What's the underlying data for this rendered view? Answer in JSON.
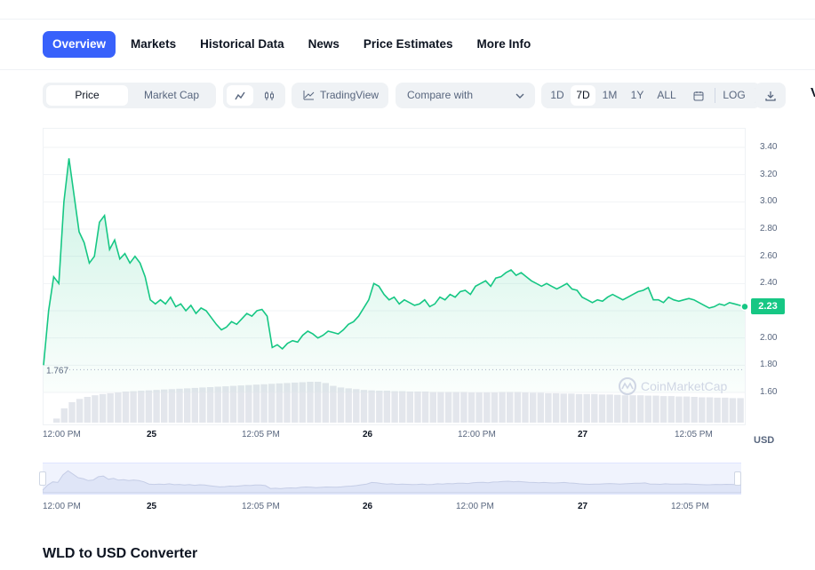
{
  "tabs": [
    {
      "label": "Overview",
      "active": true
    },
    {
      "label": "Markets"
    },
    {
      "label": "Historical Data"
    },
    {
      "label": "News"
    },
    {
      "label": "Price Estimates"
    },
    {
      "label": "More Info"
    }
  ],
  "toolbar": {
    "price_label": "Price",
    "market_cap_label": "Market Cap",
    "tradingview_label": "TradingView",
    "compare_label": "Compare with",
    "ranges": [
      "1D",
      "7D",
      "1M",
      "1Y",
      "ALL"
    ],
    "active_range": "7D",
    "log_label": "LOG",
    "icons": [
      "line-chart-icon",
      "candlestick-icon",
      "tradingview-icon",
      "chevron-down-icon",
      "calendar-icon",
      "download-icon"
    ]
  },
  "chart_data": {
    "type": "area",
    "y_ticks": [
      "3.40",
      "3.20",
      "3.00",
      "2.80",
      "2.60",
      "2.40",
      "2.20",
      "2.00",
      "1.80",
      "1.60"
    ],
    "ylim": [
      1.45,
      3.55
    ],
    "x_ticks": [
      "12:00 PM",
      "25",
      "12:05 PM",
      "26",
      "12:00 PM",
      "27",
      "12:05 PM"
    ],
    "x_day_ticks": [
      "25",
      "26",
      "27"
    ],
    "current_price": "2.23",
    "open_price_label": "1.767",
    "open_price": 1.767,
    "currency": "USD",
    "watermark": "CoinMarketCap",
    "line_color": "#16c784",
    "price_series": [
      1.8,
      2.2,
      2.45,
      2.4,
      3.0,
      3.32,
      3.05,
      2.78,
      2.7,
      2.55,
      2.6,
      2.85,
      2.9,
      2.65,
      2.72,
      2.58,
      2.62,
      2.55,
      2.6,
      2.55,
      2.45,
      2.28,
      2.25,
      2.28,
      2.25,
      2.3,
      2.23,
      2.25,
      2.2,
      2.24,
      2.18,
      2.22,
      2.2,
      2.15,
      2.1,
      2.06,
      2.08,
      2.12,
      2.1,
      2.14,
      2.18,
      2.16,
      2.2,
      2.21,
      2.16,
      1.93,
      1.95,
      1.92,
      1.96,
      1.98,
      1.97,
      2.02,
      2.05,
      2.03,
      2.0,
      2.02,
      2.05,
      2.04,
      2.03,
      2.06,
      2.1,
      2.12,
      2.16,
      2.22,
      2.28,
      2.4,
      2.38,
      2.32,
      2.28,
      2.3,
      2.25,
      2.28,
      2.26,
      2.24,
      2.25,
      2.28,
      2.23,
      2.25,
      2.3,
      2.28,
      2.32,
      2.3,
      2.34,
      2.35,
      2.32,
      2.38,
      2.4,
      2.42,
      2.38,
      2.44,
      2.45,
      2.48,
      2.5,
      2.46,
      2.48,
      2.45,
      2.42,
      2.4,
      2.38,
      2.4,
      2.38,
      2.36,
      2.38,
      2.4,
      2.36,
      2.35,
      2.3,
      2.28,
      2.26,
      2.28,
      2.27,
      2.3,
      2.32,
      2.3,
      2.28,
      2.3,
      2.32,
      2.34,
      2.35,
      2.37,
      2.28,
      2.28,
      2.26,
      2.3,
      2.28,
      2.27,
      2.28,
      2.29,
      2.28,
      2.26,
      2.24,
      2.22,
      2.23,
      2.25,
      2.24,
      2.26,
      2.25,
      2.24,
      2.23
    ],
    "volume_series": [
      0.1,
      0.35,
      0.5,
      0.58,
      0.63,
      0.67,
      0.7,
      0.72,
      0.74,
      0.76,
      0.77,
      0.78,
      0.79,
      0.8,
      0.81,
      0.82,
      0.83,
      0.84,
      0.85,
      0.86,
      0.87,
      0.88,
      0.89,
      0.9,
      0.91,
      0.92,
      0.93,
      0.94,
      0.95,
      0.96,
      0.97,
      0.98,
      0.99,
      1.0,
      1.0,
      0.97,
      0.9,
      0.86,
      0.84,
      0.82,
      0.8,
      0.79,
      0.78,
      0.78,
      0.77,
      0.77,
      0.76,
      0.76,
      0.76,
      0.75,
      0.75,
      0.75,
      0.75,
      0.75,
      0.74,
      0.74,
      0.74,
      0.74,
      0.75,
      0.75,
      0.75,
      0.74,
      0.73,
      0.73,
      0.72,
      0.72,
      0.71,
      0.71,
      0.7,
      0.7,
      0.7,
      0.69,
      0.69,
      0.68,
      0.67,
      0.67,
      0.67,
      0.66,
      0.66,
      0.65,
      0.65,
      0.64,
      0.64,
      0.63,
      0.62,
      0.62,
      0.61,
      0.61,
      0.6,
      0.6
    ]
  },
  "converter_title": "WLD to USD Converter"
}
